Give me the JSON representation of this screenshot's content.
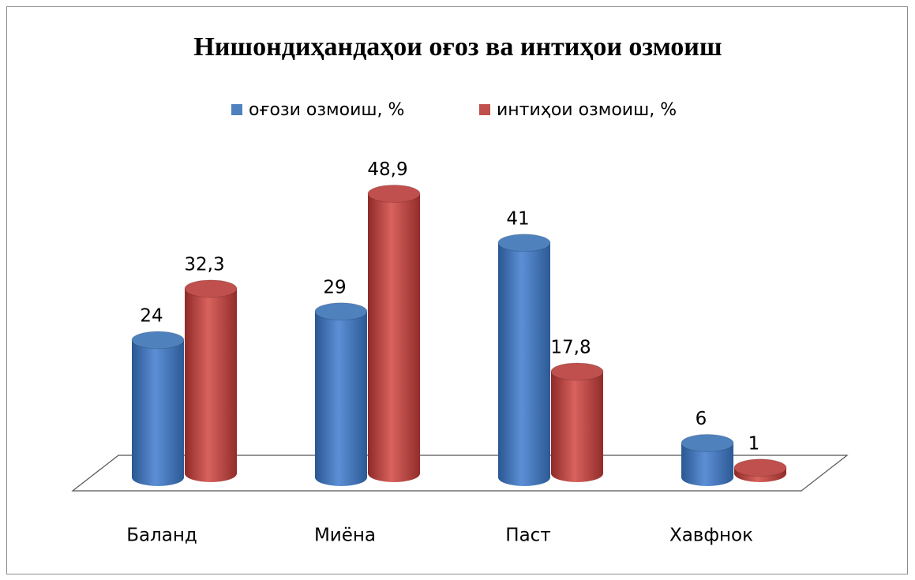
{
  "chart_data": {
    "type": "bar3d",
    "title": "Нишондиҳандаҳои оғоз ва интиҳои озмоиш",
    "categories": [
      "Баланд",
      "Миёна",
      "Паст",
      "Хавфнок"
    ],
    "series": [
      {
        "name": "оғози озмоиш, %",
        "color": "#4f81bd",
        "values": [
          24,
          29,
          41,
          6
        ]
      },
      {
        "name": "интиҳои озмоиш, %",
        "color": "#c0504d",
        "values": [
          32.3,
          48.9,
          17.8,
          1
        ],
        "value_labels": [
          "32,3",
          "48,9",
          "17,8",
          "1"
        ]
      }
    ],
    "legend": "top"
  }
}
